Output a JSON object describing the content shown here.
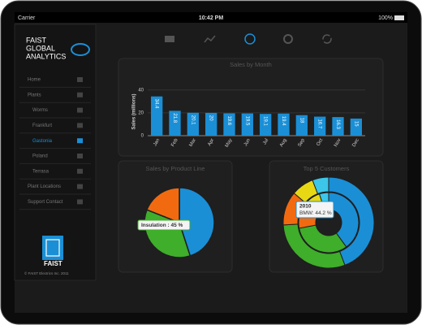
{
  "status_bar": {
    "carrier": "Carrier",
    "time": "10:42 PM",
    "battery": "100%"
  },
  "sidebar": {
    "brand": [
      "FAIST",
      "GLOBAL",
      "ANALYTICS"
    ],
    "menu": [
      {
        "label": "Home",
        "level": 0
      },
      {
        "label": "Plants",
        "level": 0
      },
      {
        "label": "Worms",
        "level": 1
      },
      {
        "label": "Frankfurt",
        "level": 1
      },
      {
        "label": "Gastonia",
        "level": 1,
        "active": true
      },
      {
        "label": "Poland",
        "level": 1
      },
      {
        "label": "Terrasa",
        "level": 1
      },
      {
        "label": "Plant Locations",
        "level": 0
      },
      {
        "label": "Support Contact",
        "level": 0
      }
    ],
    "logo": "FAIST",
    "copyright": "© FAIST Electrics Inc. 2011"
  },
  "chart_data": [
    {
      "type": "bar",
      "title": "Sales by Month",
      "y_label": "Sales (millions)",
      "categories": [
        "Jan",
        "Feb",
        "Mar",
        "Apr",
        "May",
        "Jun",
        "Jul",
        "Aug",
        "Sep",
        "Oct",
        "Nov",
        "Dec"
      ],
      "values": [
        34.4,
        21.8,
        20.1,
        20,
        19.6,
        19.5,
        19.1,
        19.4,
        18,
        16.7,
        16.3,
        15
      ],
      "color": "#1a8fd6",
      "ylim": [
        0,
        42
      ],
      "yticks": [
        0,
        20,
        40
      ],
      "grid": true
    },
    {
      "type": "pie",
      "title": "Sales by Product Line",
      "series": [
        {
          "name": "Insulation",
          "color": "#1a8fd6",
          "values": [
            45
          ]
        },
        {
          "name": null,
          "color": "#3fae2a",
          "values": [
            36
          ]
        },
        {
          "name": null,
          "color": "#f26a10",
          "values": [
            19
          ]
        }
      ],
      "tooltip": "Insulation : 45 %"
    },
    {
      "type": "donut",
      "title": "Top 5 Customers",
      "colors": [
        "#1a8fd6",
        "#3fae2a",
        "#f26a10",
        "#e8d814",
        "#3cc6e8"
      ],
      "series": [
        {
          "name": "2010",
          "values": [
            44.2,
            30,
            12,
            8,
            5.8
          ]
        },
        {
          "name": null,
          "values": [
            40,
            32,
            14,
            9,
            5
          ]
        }
      ],
      "tooltip": "BMW: 44.2 %"
    }
  ]
}
